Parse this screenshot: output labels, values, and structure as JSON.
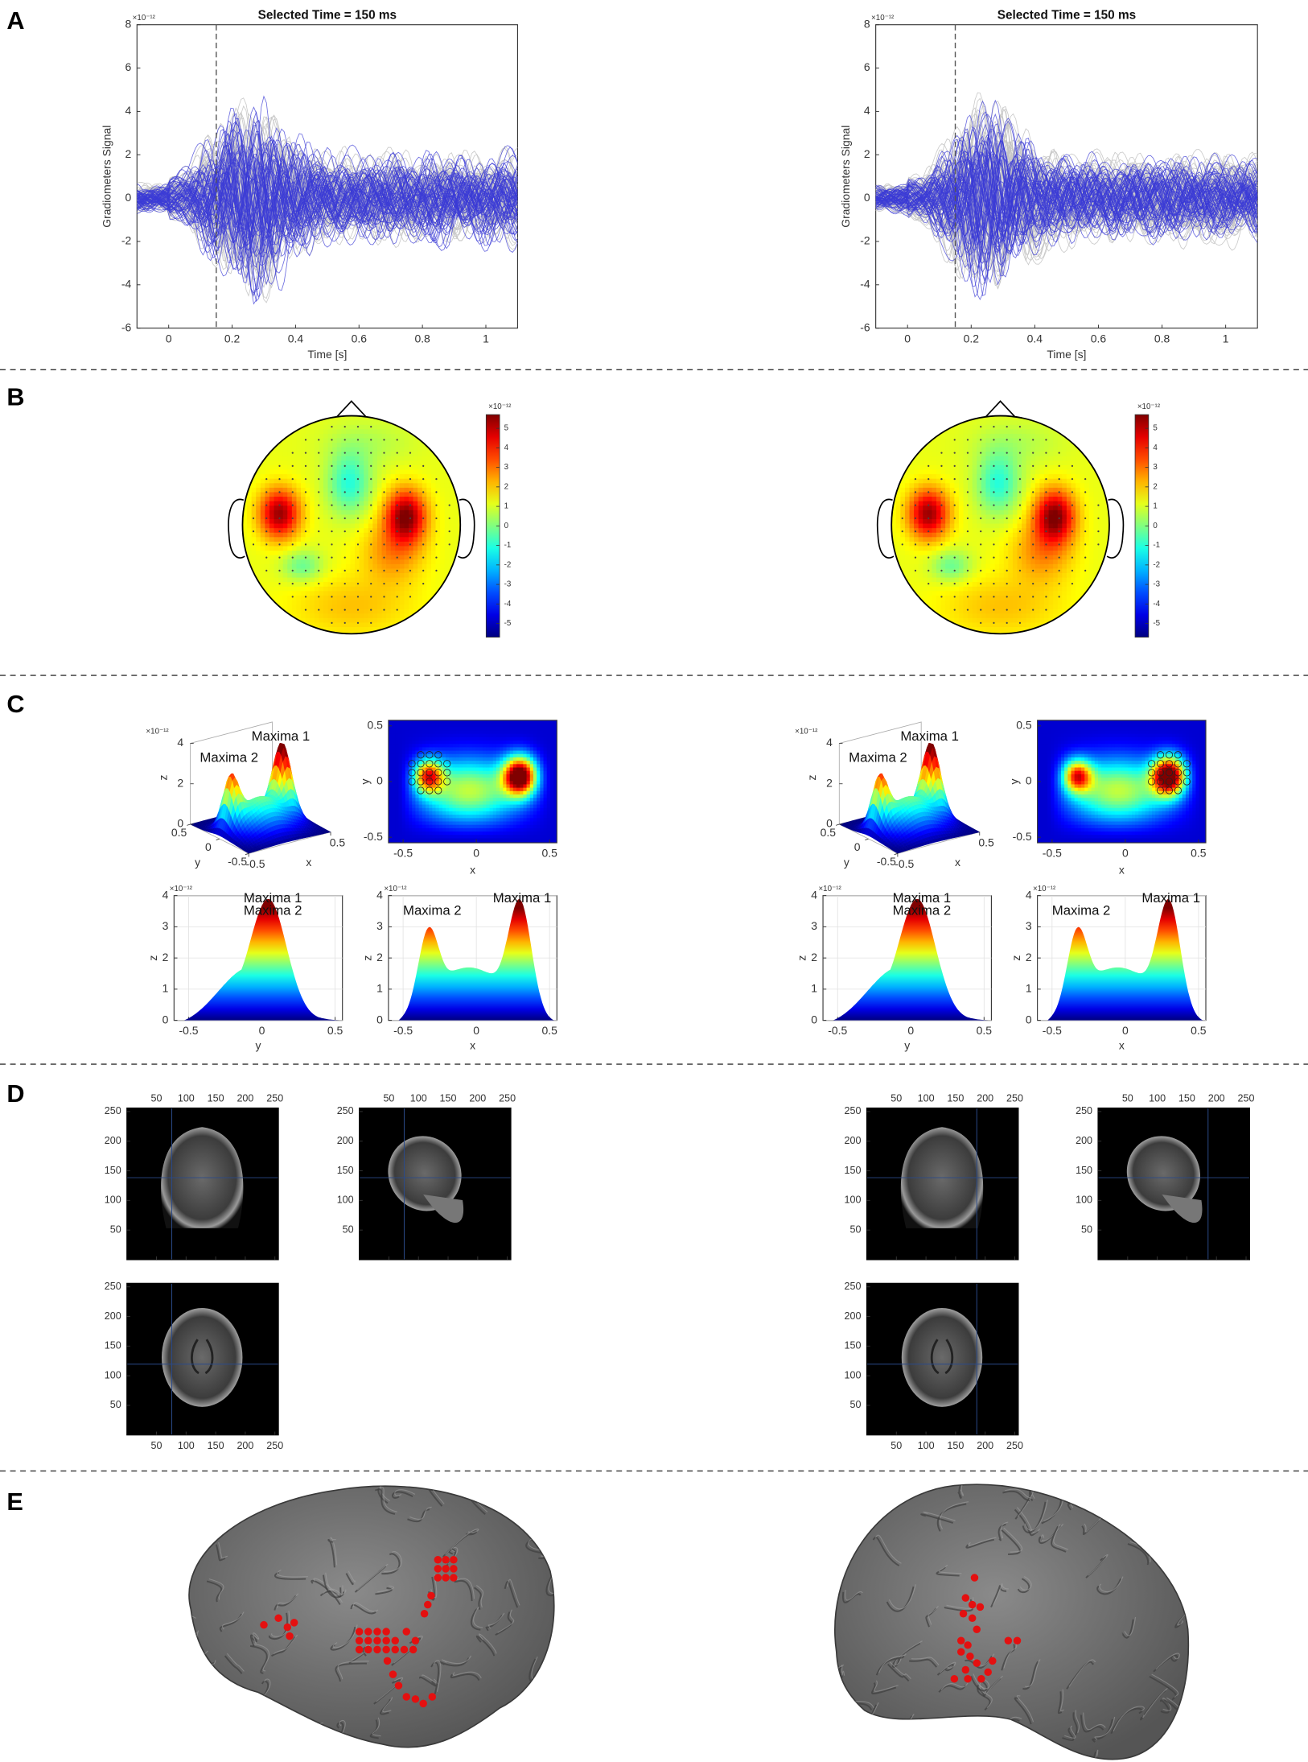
{
  "panel_labels": [
    "A",
    "B",
    "C",
    "D",
    "E"
  ],
  "waveform_plots": [
    {
      "title": "Selected Time = 150 ms",
      "xlabel": "Time [s]",
      "ylabel": "Gradiometers Signal",
      "exponent": "×10⁻¹²",
      "selected_time": 0.15,
      "xlim": [
        -0.1,
        1.1
      ],
      "ylim": [
        -6,
        8
      ],
      "xticks": [
        0,
        0.2,
        0.4,
        0.6,
        0.8,
        1
      ],
      "yticks": [
        -6,
        -4,
        -2,
        0,
        2,
        4,
        6,
        8
      ]
    },
    {
      "title": "Selected Time = 150 ms",
      "xlabel": "Time [s]",
      "ylabel": "Gradiometers Signal",
      "exponent": "×10⁻¹²",
      "selected_time": 0.15,
      "xlim": [
        -0.1,
        1.1
      ],
      "ylim": [
        -6,
        8
      ],
      "xticks": [
        0,
        0.2,
        0.4,
        0.6,
        0.8,
        1
      ],
      "yticks": [
        -6,
        -4,
        -2,
        0,
        2,
        4,
        6,
        8
      ]
    }
  ],
  "topomaps": [
    {
      "exponent": "×10⁻¹²",
      "clim": [
        -5.7,
        5.7
      ],
      "cticks": [
        -5,
        -4,
        -3,
        -2,
        -1,
        0,
        1,
        2,
        3,
        4,
        5
      ]
    },
    {
      "exponent": "×10⁻¹²",
      "clim": [
        -5.7,
        5.7
      ],
      "cticks": [
        -5,
        -4,
        -3,
        -2,
        -1,
        0,
        1,
        2,
        3,
        4,
        5
      ]
    }
  ],
  "peak_plots": [
    {
      "surface": {
        "exponent": "×10⁻¹²",
        "annotations": [
          "Maxima 1",
          "Maxima 2"
        ],
        "xlabel": "x",
        "ylabel": "y",
        "zlabel": "z",
        "xticks": [
          -0.5,
          0.5
        ],
        "yticks": [
          -0.5,
          0,
          0.5
        ],
        "zticks": [
          0,
          2,
          4
        ]
      },
      "map": {
        "xlabel": "x",
        "ylabel": "y",
        "xlim": [
          -0.6,
          0.55
        ],
        "ylim": [
          -0.55,
          0.55
        ],
        "xticks": [
          -0.5,
          0,
          0.5
        ],
        "yticks": [
          -0.5,
          0,
          0.5
        ]
      },
      "profile_y": {
        "exponent": "×10⁻¹²",
        "annotations": [
          "Maxima 1",
          "Maxima 2"
        ],
        "xlabel": "y",
        "ylabel": "z",
        "xlim": [
          -0.6,
          0.55
        ],
        "ylim": [
          0,
          4
        ],
        "xticks": [
          -0.5,
          0,
          0.5
        ],
        "yticks": [
          0,
          1,
          2,
          3,
          4
        ]
      },
      "profile_x": {
        "exponent": "×10⁻¹²",
        "annotations": [
          "Maxima 2",
          "Maxima 1"
        ],
        "xlabel": "x",
        "ylabel": "z",
        "xlim": [
          -0.6,
          0.55
        ],
        "ylim": [
          0,
          4
        ],
        "xticks": [
          -0.5,
          0,
          0.5
        ],
        "yticks": [
          0,
          1,
          2,
          3,
          4
        ]
      }
    },
    {
      "surface": {
        "exponent": "×10⁻¹²",
        "annotations": [
          "Maxima 1",
          "Maxima 2"
        ],
        "xlabel": "x",
        "ylabel": "y",
        "zlabel": "z",
        "xticks": [
          -0.5,
          0.5
        ],
        "yticks": [
          -0.5,
          0,
          0.5
        ],
        "zticks": [
          0,
          2,
          4
        ]
      },
      "map": {
        "xlabel": "x",
        "ylabel": "y",
        "xlim": [
          -0.6,
          0.55
        ],
        "ylim": [
          -0.55,
          0.55
        ],
        "xticks": [
          -0.5,
          0,
          0.5
        ],
        "yticks": [
          -0.5,
          0,
          0.5
        ]
      },
      "profile_y": {
        "exponent": "×10⁻¹²",
        "annotations": [
          "Maxima 1",
          "Maxima 2"
        ],
        "xlabel": "y",
        "ylabel": "z",
        "xlim": [
          -0.6,
          0.55
        ],
        "ylim": [
          0,
          4
        ],
        "xticks": [
          -0.5,
          0,
          0.5
        ],
        "yticks": [
          0,
          1,
          2,
          3,
          4
        ]
      },
      "profile_x": {
        "exponent": "×10⁻¹²",
        "annotations": [
          "Maxima 2",
          "Maxima 1"
        ],
        "xlabel": "x",
        "ylabel": "z",
        "xlim": [
          -0.6,
          0.55
        ],
        "ylim": [
          0,
          4
        ],
        "xticks": [
          -0.5,
          0,
          0.5
        ],
        "yticks": [
          0,
          1,
          2,
          3,
          4
        ]
      }
    }
  ],
  "mri_plots": [
    [
      {
        "xlim": [
          0,
          256
        ],
        "ylim": [
          0,
          256
        ],
        "xticks": [
          50,
          100,
          150,
          200,
          250
        ],
        "yticks": [
          50,
          100,
          150,
          200,
          250
        ]
      },
      {
        "xlim": [
          0,
          256
        ],
        "ylim": [
          0,
          256
        ],
        "xticks": [
          50,
          100,
          150,
          200,
          250
        ],
        "yticks": [
          50,
          100,
          150,
          200,
          250
        ]
      },
      {
        "xlim": [
          0,
          256
        ],
        "ylim": [
          0,
          256
        ],
        "xticks": [
          50,
          100,
          150,
          200,
          250
        ],
        "yticks": [
          50,
          100,
          150,
          200,
          250
        ]
      }
    ],
    [
      {
        "xlim": [
          0,
          256
        ],
        "ylim": [
          0,
          256
        ],
        "xticks": [
          50,
          100,
          150,
          200,
          250
        ],
        "yticks": [
          50,
          100,
          150,
          200,
          250
        ]
      },
      {
        "xlim": [
          0,
          256
        ],
        "ylim": [
          0,
          256
        ],
        "xticks": [
          50,
          100,
          150,
          200,
          250
        ],
        "yticks": [
          50,
          100,
          150,
          200,
          250
        ]
      },
      {
        "xlim": [
          0,
          256
        ],
        "ylim": [
          0,
          256
        ],
        "xticks": [
          50,
          100,
          150,
          200,
          250
        ],
        "yticks": [
          50,
          100,
          150,
          200,
          250
        ]
      }
    ]
  ]
}
